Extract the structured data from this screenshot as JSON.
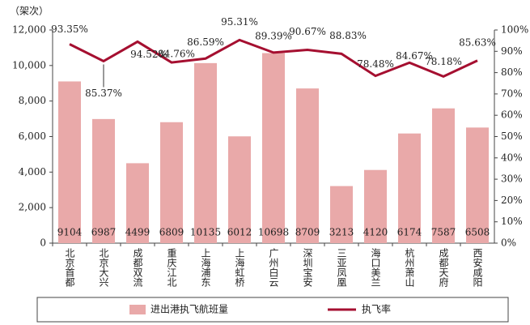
{
  "chart_data": {
    "type": "bar",
    "y_label": "（架次）",
    "categories": [
      "北京首都",
      "北京大兴",
      "成都双流",
      "重庆江北",
      "上海浦东",
      "上海虹桥",
      "广州白云",
      "深圳宝安",
      "三亚凤凰",
      "海口美兰",
      "杭州萧山",
      "成都天府",
      "西安咸阳"
    ],
    "series": [
      {
        "name": "进出港执飞航班量",
        "color": "#e9a9a9",
        "values": [
          9104,
          6987,
          4499,
          6809,
          10135,
          6012,
          10698,
          8709,
          3213,
          4120,
          6174,
          7587,
          6508
        ]
      },
      {
        "name": "执飞率",
        "type": "line",
        "axis": "y2",
        "color": "#a50f30",
        "values": [
          93.35,
          85.37,
          94.52,
          84.76,
          86.59,
          95.31,
          89.39,
          90.67,
          88.83,
          78.48,
          84.67,
          78.18,
          85.63
        ],
        "value_labels": [
          "93.35%",
          "85.37%",
          "94.52%",
          "84.76%",
          "86.59%",
          "95.31%",
          "89.39%",
          "90.67%",
          "88.83%",
          "78.48%",
          "84.67%",
          "78.18%",
          "85.63%"
        ]
      }
    ],
    "ylim": [
      0,
      12000
    ],
    "yticks": [
      0,
      {
        "value": 2000,
        "label": "2,000"
      },
      {
        "value": 4000,
        "label": "4,000"
      },
      {
        "value": 6000,
        "label": "6,000"
      },
      {
        "value": 8000,
        "label": "8,000"
      },
      {
        "value": 10000,
        "label": "10,000"
      },
      {
        "value": 12000,
        "label": "12,000"
      }
    ],
    "y2lim": [
      0,
      100
    ],
    "y2ticks": [
      {
        "value": 0,
        "label": "0%"
      },
      {
        "value": 10,
        "label": "10%"
      },
      {
        "value": 20,
        "label": "20%"
      },
      {
        "value": 30,
        "label": "30%"
      },
      {
        "value": 40,
        "label": "40%"
      },
      {
        "value": 50,
        "label": "50%"
      },
      {
        "value": 60,
        "label": "60%"
      },
      {
        "value": 70,
        "label": "70%"
      },
      {
        "value": 80,
        "label": "80%"
      },
      {
        "value": 90,
        "label": "90%"
      },
      {
        "value": 100,
        "label": "100%"
      }
    ]
  }
}
